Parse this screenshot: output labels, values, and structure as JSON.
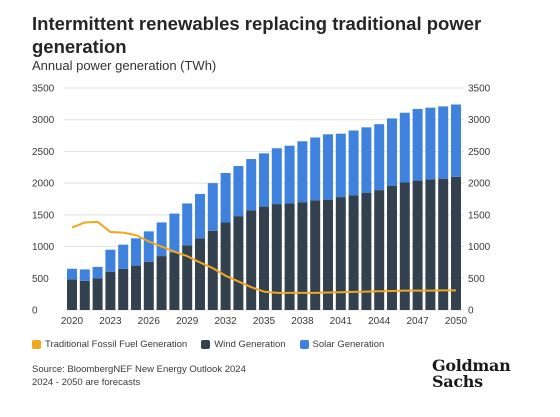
{
  "header": {
    "title": "Intermittent renewables replacing traditional power generation",
    "subtitle": "Annual power generation (TWh)"
  },
  "footer": {
    "source": "Source: BloombergNEF New Energy Outlook 2024",
    "note": "2024 - 2050 are forecasts"
  },
  "logo": {
    "line1": "Goldman",
    "line2": "Sachs"
  },
  "colors": {
    "fossil": "#f0a81c",
    "wind": "#33414f",
    "solar": "#3f82dd",
    "grid": "#dde2e6",
    "tick": "#3a3a3a"
  },
  "chart_data": {
    "type": "bar",
    "stacked": true,
    "x_tick_labels": [
      "2020",
      "2023",
      "2026",
      "2029",
      "2032",
      "2035",
      "2038",
      "2041",
      "2044",
      "2047",
      "2050"
    ],
    "ylim": [
      0,
      3500
    ],
    "y_ticks": [
      0,
      500,
      1000,
      1500,
      2000,
      2500,
      3000,
      3500
    ],
    "y_tick_labels": [
      "0",
      "500",
      "1000",
      "1500",
      "2000",
      "2500",
      "3000",
      "3500"
    ],
    "grid": true,
    "legend_position": "bottom",
    "categories": [
      2020,
      2021,
      2022,
      2023,
      2024,
      2025,
      2026,
      2027,
      2028,
      2029,
      2030,
      2031,
      2032,
      2033,
      2034,
      2035,
      2036,
      2037,
      2038,
      2039,
      2040,
      2041,
      2042,
      2043,
      2044,
      2045,
      2046,
      2047,
      2048,
      2049,
      2050
    ],
    "series": [
      {
        "name": "Wind Generation",
        "type": "bar",
        "values": [
          480,
          460,
          500,
          600,
          650,
          700,
          760,
          850,
          910,
          1020,
          1130,
          1250,
          1380,
          1480,
          1570,
          1630,
          1670,
          1680,
          1700,
          1730,
          1740,
          1780,
          1810,
          1850,
          1890,
          1960,
          2010,
          2040,
          2060,
          2070,
          2100
        ]
      },
      {
        "name": "Solar Generation",
        "type": "bar",
        "values": [
          170,
          180,
          180,
          350,
          380,
          430,
          480,
          530,
          610,
          660,
          700,
          750,
          780,
          790,
          810,
          840,
          880,
          910,
          960,
          990,
          1030,
          1000,
          1020,
          1030,
          1040,
          1060,
          1100,
          1130,
          1130,
          1140,
          1140
        ]
      },
      {
        "name": "Traditional Fossil Fuel Generation",
        "type": "line",
        "values": [
          1300,
          1380,
          1390,
          1230,
          1220,
          1180,
          1080,
          1000,
          920,
          850,
          750,
          660,
          540,
          450,
          360,
          290,
          270,
          270,
          270,
          270,
          275,
          280,
          285,
          290,
          295,
          300,
          305,
          305,
          305,
          310,
          310
        ]
      }
    ]
  }
}
